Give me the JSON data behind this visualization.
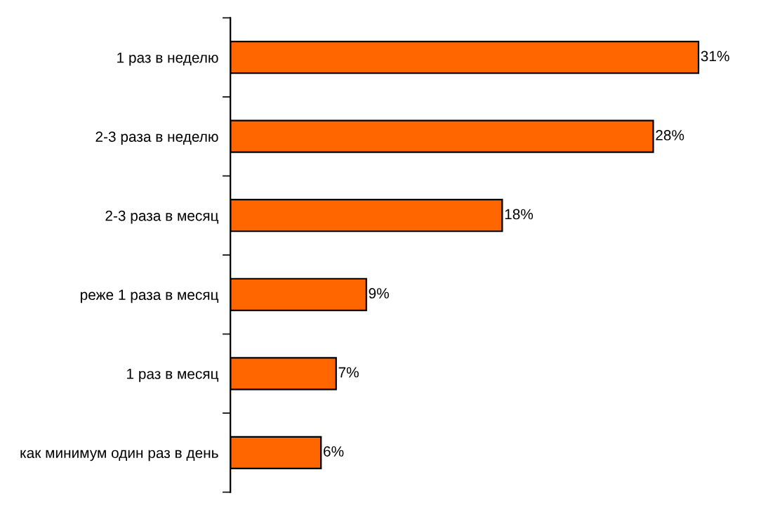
{
  "chart_data": {
    "type": "bar",
    "orientation": "horizontal",
    "categories": [
      "1 раз в неделю",
      "2-3 раза в неделю",
      "2-3 раза в месяц",
      "реже 1 раза в месяц",
      "1 раз в месяц",
      "как минимум один раз в день"
    ],
    "values": [
      31,
      28,
      18,
      9,
      7,
      6
    ],
    "value_labels": [
      "31%",
      "28%",
      "18%",
      "9%",
      "7%",
      "6%"
    ],
    "color": "#ff6600",
    "grid": false,
    "legend": false
  }
}
